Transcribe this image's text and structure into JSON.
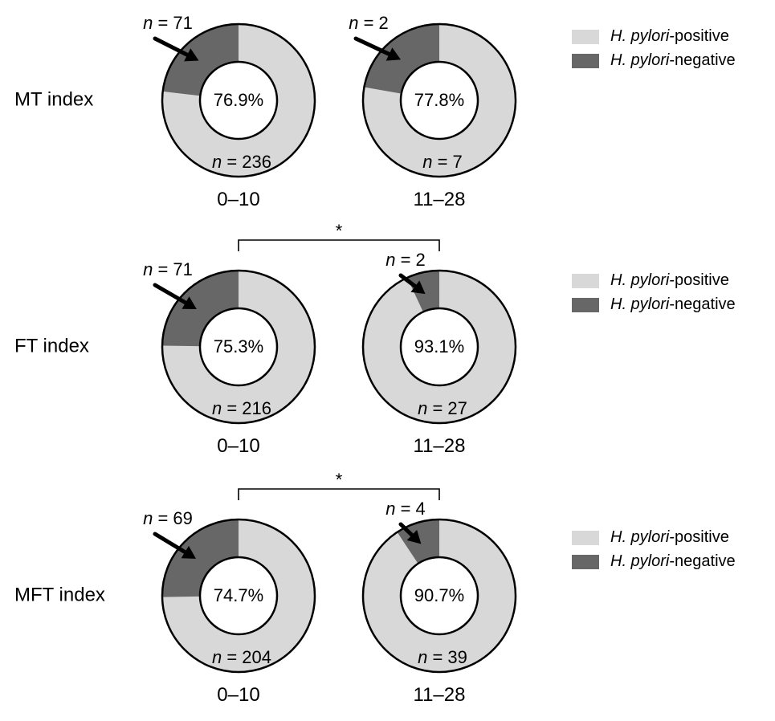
{
  "legend": {
    "positive_label": "H. pylori-positive",
    "negative_label": "H. pylori-negative",
    "positive_color": "#d8d8d8",
    "negative_color": "#676767"
  },
  "chart_data": [
    {
      "type": "pie",
      "row_label": "MT index",
      "significance": "",
      "donuts": [
        {
          "category": "0–10",
          "center_label": "76.9%",
          "positive": 236,
          "negative": 71,
          "positive_n_label": "n = 236",
          "negative_n_label": "n = 71"
        },
        {
          "category": "11–28",
          "center_label": "77.8%",
          "positive": 7,
          "negative": 2,
          "positive_n_label": "n = 7",
          "negative_n_label": "n = 2"
        }
      ]
    },
    {
      "type": "pie",
      "row_label": "FT index",
      "significance": "*",
      "donuts": [
        {
          "category": "0–10",
          "center_label": "75.3%",
          "positive": 216,
          "negative": 71,
          "positive_n_label": "n = 216",
          "negative_n_label": "n = 71"
        },
        {
          "category": "11–28",
          "center_label": "93.1%",
          "positive": 27,
          "negative": 2,
          "positive_n_label": "n = 27",
          "negative_n_label": "n = 2"
        }
      ]
    },
    {
      "type": "pie",
      "row_label": "MFT index",
      "significance": "*",
      "donuts": [
        {
          "category": "0–10",
          "center_label": "74.7%",
          "positive": 204,
          "negative": 69,
          "positive_n_label": "n = 204",
          "negative_n_label": "n = 69"
        },
        {
          "category": "11–28",
          "center_label": "90.7%",
          "positive": 39,
          "negative": 4,
          "positive_n_label": "n = 39",
          "negative_n_label": "n = 4"
        }
      ]
    }
  ]
}
